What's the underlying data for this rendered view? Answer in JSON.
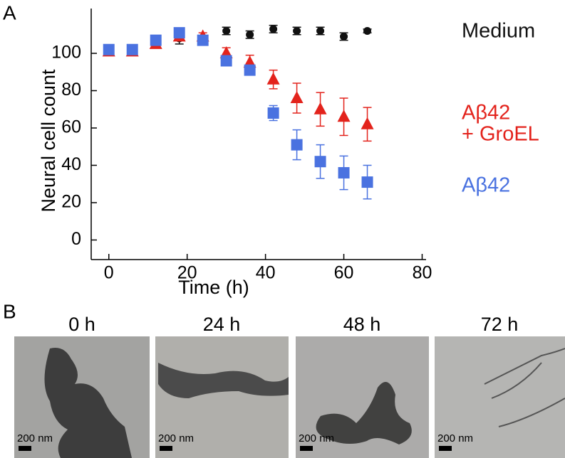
{
  "panel_labels": [
    "A",
    "B"
  ],
  "chart_data": {
    "type": "scatter",
    "x_label": "Time (h)",
    "y_label": "Neural cell count",
    "x": [
      0,
      6,
      12,
      18,
      24,
      30,
      36,
      42,
      48,
      54,
      60,
      66
    ],
    "series": [
      {
        "name": [
          "Medium"
        ],
        "color": "#111111",
        "marker": "circle",
        "values": [
          101,
          101,
          105,
          108,
          107,
          112,
          110,
          113,
          112,
          112,
          109,
          112
        ],
        "errors": [
          2,
          2,
          2,
          3,
          2,
          2,
          2,
          2,
          2,
          2,
          2,
          1
        ]
      },
      {
        "name": [
          "Aβ42",
          "+ GroEL"
        ],
        "color": "#e3231c",
        "marker": "triangle",
        "values": [
          101,
          101,
          105,
          109,
          109,
          100,
          95,
          86,
          76,
          70,
          66,
          62
        ],
        "errors": [
          1,
          1,
          1,
          1,
          2,
          3,
          4,
          5,
          8,
          9,
          10,
          9
        ]
      },
      {
        "name": [
          "Aβ42"
        ],
        "color": "#4a72e0",
        "marker": "square",
        "values": [
          102,
          102,
          107,
          111,
          107,
          96,
          91,
          68,
          51,
          42,
          36,
          31
        ],
        "errors": [
          1,
          1,
          2,
          2,
          2,
          2,
          2,
          4,
          8,
          9,
          9,
          9
        ]
      }
    ],
    "xlim": [
      -4.5,
      81
    ],
    "ylim": [
      -10.5,
      124
    ],
    "xticks": [
      0,
      20,
      40,
      60,
      80
    ],
    "yticks": [
      0,
      20,
      40,
      60,
      80,
      100
    ]
  },
  "panel_b": {
    "images": [
      {
        "time": "0 h",
        "scale": "200 nm"
      },
      {
        "time": "24 h",
        "scale": "200 nm"
      },
      {
        "time": "48 h",
        "scale": "200 nm"
      },
      {
        "time": "72 h",
        "scale": "200 nm"
      }
    ]
  }
}
